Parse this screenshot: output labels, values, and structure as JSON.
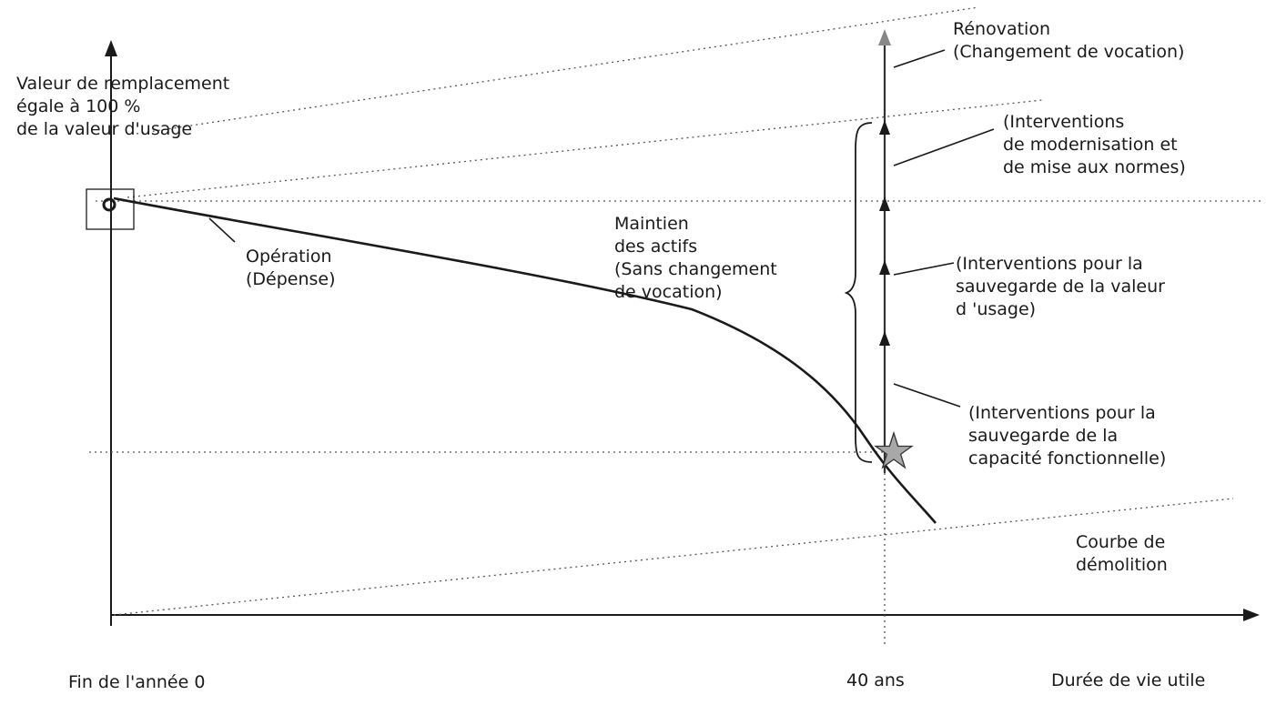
{
  "labels": {
    "y_axis_label": "Valeur de remplacement\négale à 100 %\nde la valeur d'usage",
    "x_origin_label": "Fin de l'année 0",
    "x_40_label": "40 ans",
    "x_axis_label": "Durée de vie utile",
    "operation_label": "Opération\n(Dépense)",
    "maintien_label": "Maintien\ndes actifs\n(Sans changement\nde vocation)",
    "renovation_label": "Rénovation\n(Changement de vocation)",
    "modernisation_label": "(Interventions\nde modernisation et\nde mise aux normes)",
    "sauvegarde_valeur_label": "(Interventions pour la\nsauvegarde de la valeur\nd 'usage)",
    "sauvegarde_capacite_label": "(Interventions pour la\nsauvegarde de la\ncapacité fonctionnelle)",
    "demolition_label": "Courbe de\ndémolition"
  },
  "icons": {
    "start_marker": "circle-in-square-icon",
    "end_marker": "star-icon",
    "arrowheads": "triangle-arrowhead-icon"
  },
  "colors": {
    "ink": "#1a1a1a",
    "star_fill": "#a8a8a8",
    "dotted": "#555555"
  }
}
